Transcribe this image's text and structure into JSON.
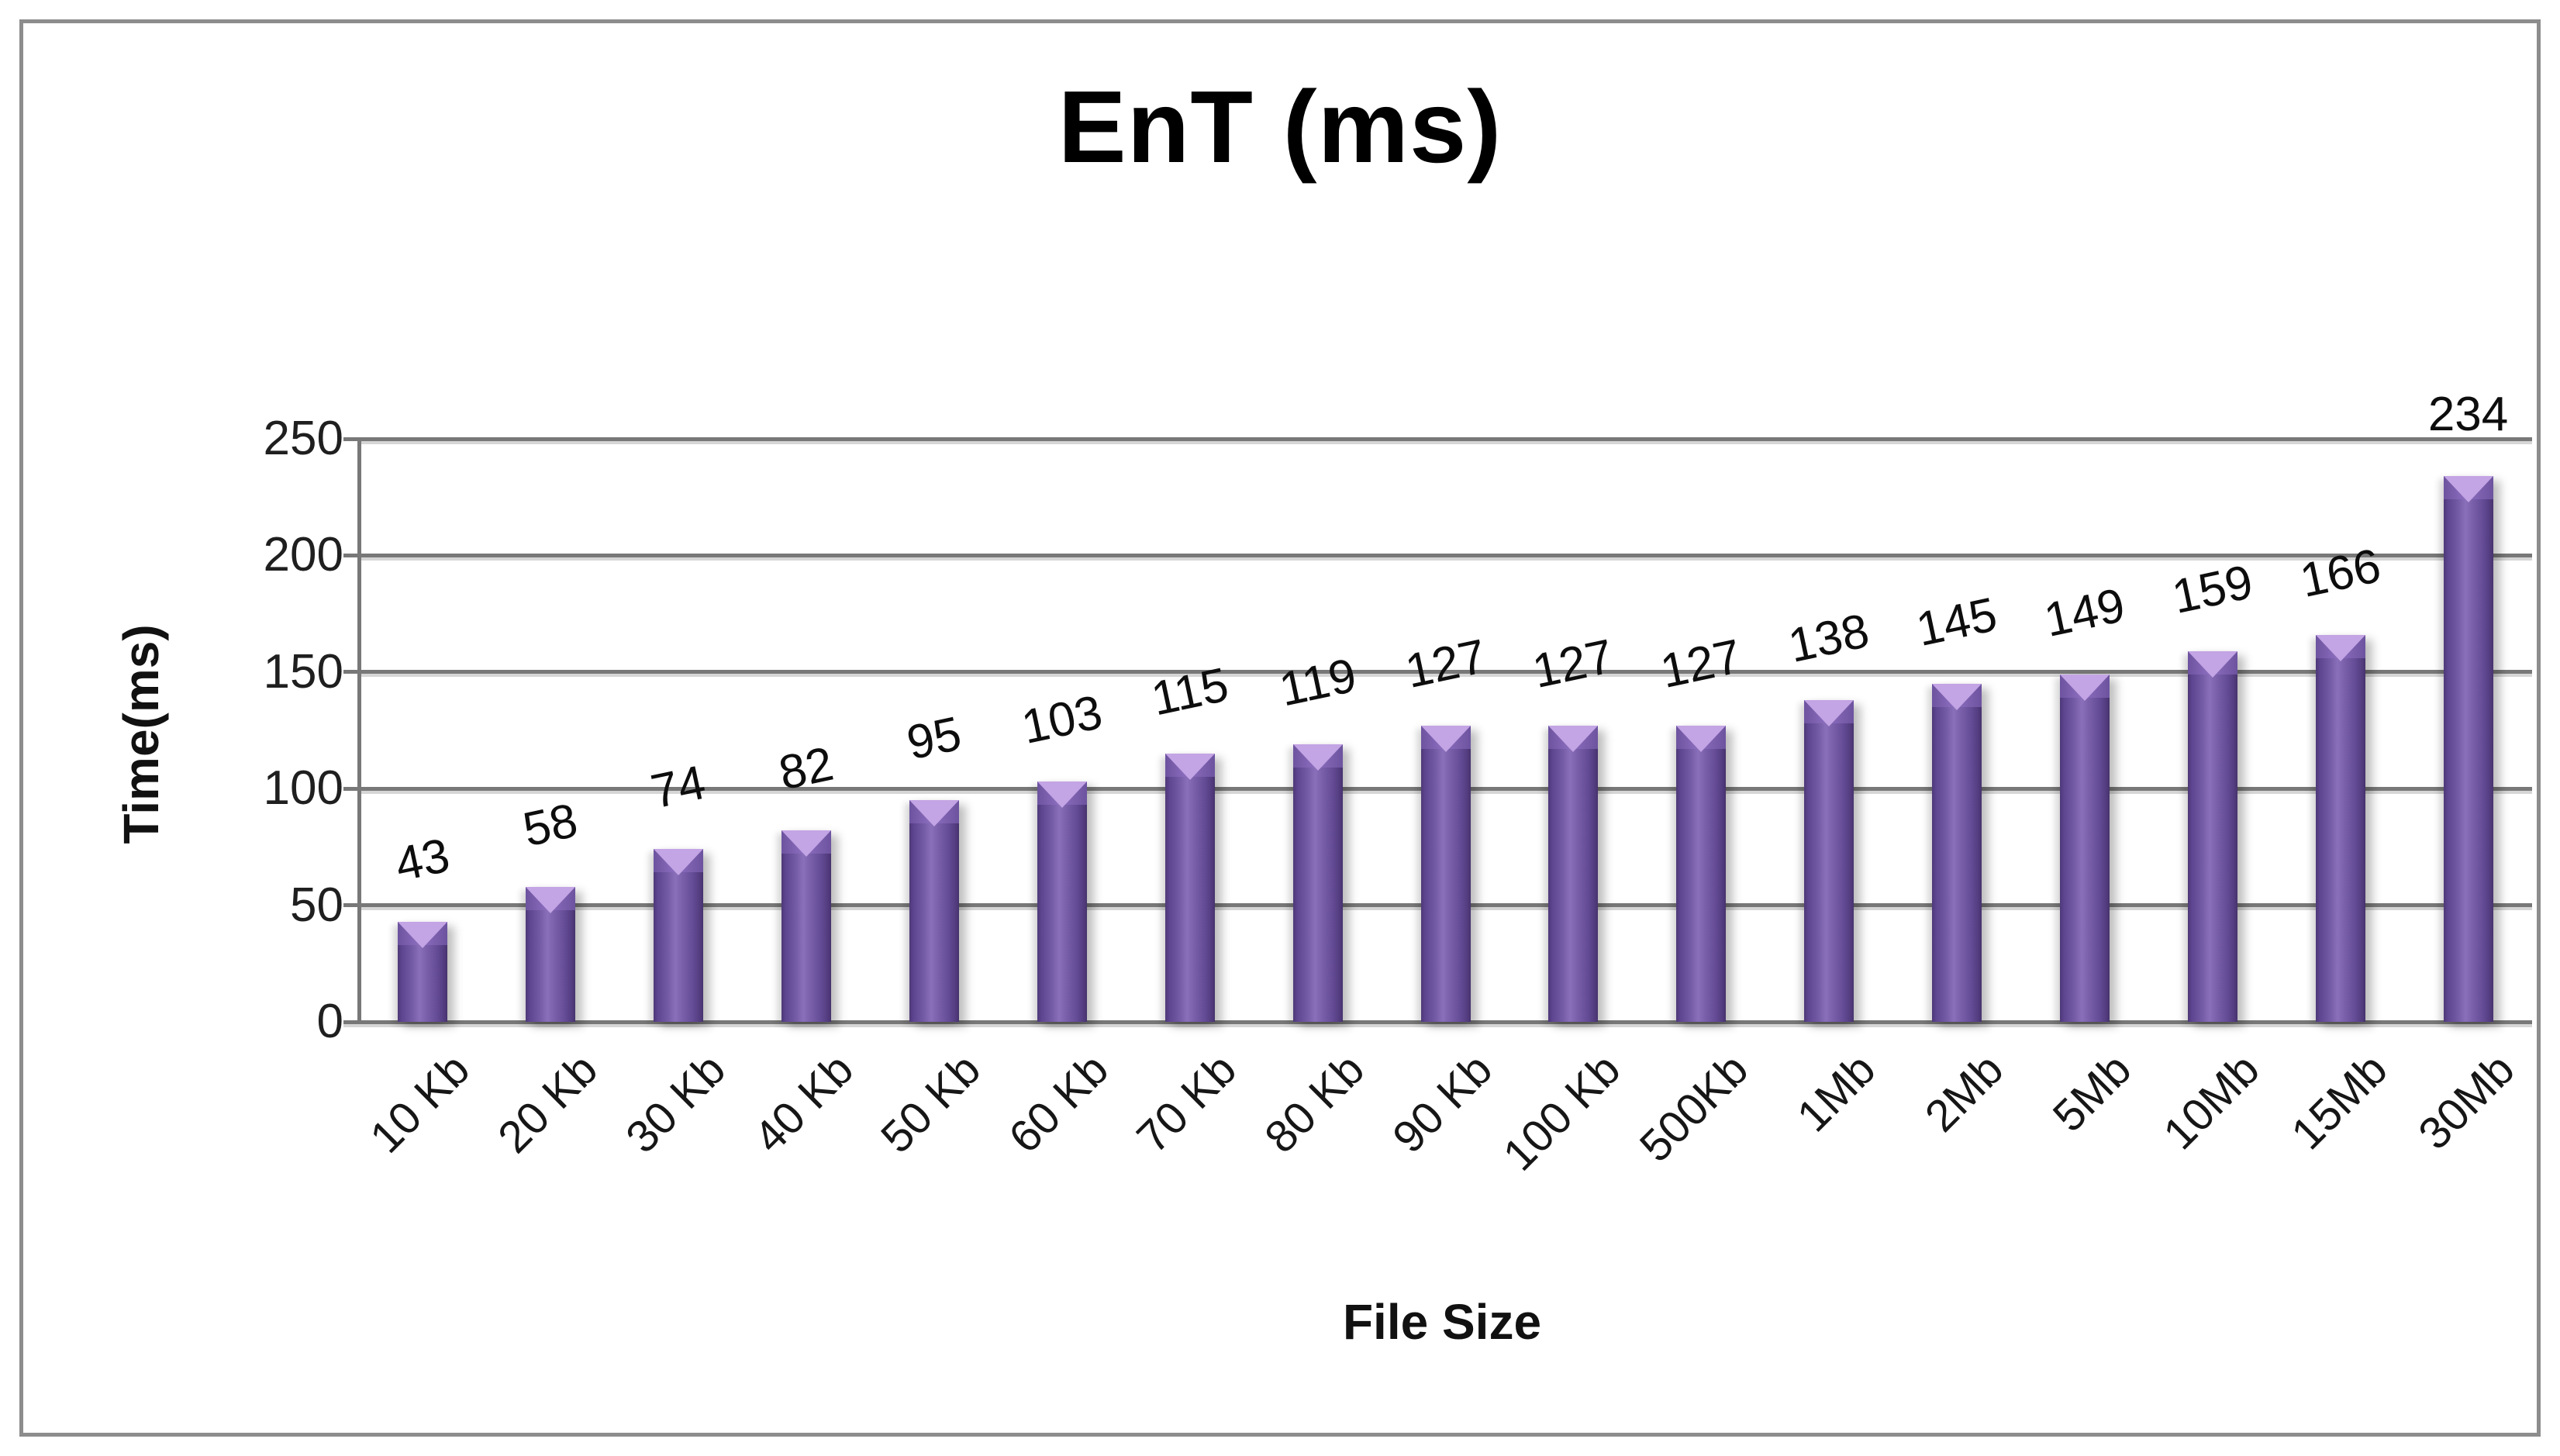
{
  "chart_data": {
    "type": "bar",
    "title": "EnT (ms)",
    "xlabel": "File Size",
    "ylabel": "Time(ms)",
    "categories": [
      "10 Kb",
      "20 Kb",
      "30 Kb",
      "40 Kb",
      "50 Kb",
      "60 Kb",
      "70 Kb",
      "80 Kb",
      "90 Kb",
      "100 Kb",
      "500Kb",
      "1Mb",
      "2Mb",
      "5Mb",
      "10Mb",
      "15Mb",
      "30Mb"
    ],
    "values": [
      43,
      58,
      74,
      82,
      95,
      103,
      115,
      119,
      127,
      127,
      127,
      138,
      145,
      149,
      159,
      166,
      234
    ],
    "series": [
      {
        "name": "EnT (ms)",
        "values": [
          43,
          58,
          74,
          82,
          95,
          103,
          115,
          119,
          127,
          127,
          127,
          138,
          145,
          149,
          159,
          166,
          234
        ]
      }
    ],
    "ylim": [
      0,
      250
    ],
    "yticks": [
      0,
      50,
      100,
      150,
      200,
      250
    ],
    "ytick_step": 50,
    "grid": true,
    "legend": false,
    "data_labels": true,
    "colors": {
      "bar_body": "#735aa4",
      "bar_edge_dark": "#4e3877",
      "bar_highlight": "#8a6fba",
      "bar_cap_band": "#8d6fc0",
      "bar_chevron": "#c3a4e4",
      "axis_gray": "#787878",
      "text": "#111111",
      "background": "#ffffff"
    }
  }
}
